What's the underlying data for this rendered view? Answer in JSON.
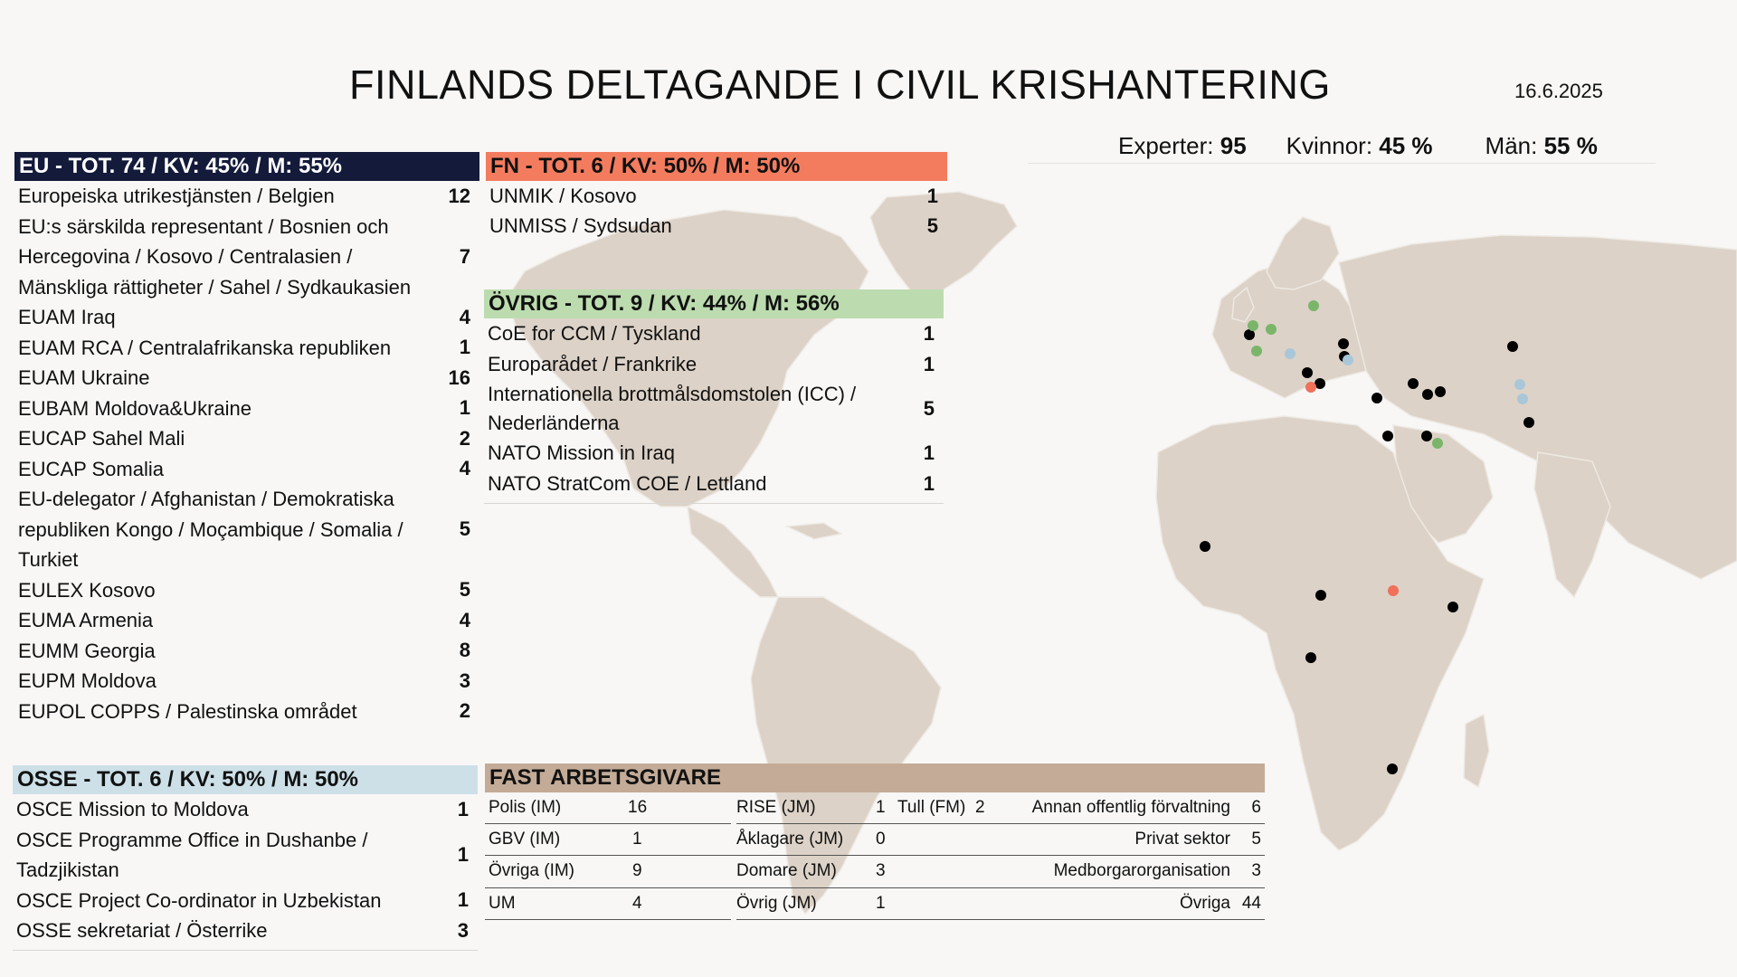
{
  "title": "FINLANDS DELTAGANDE I CIVIL KRISHANTERING",
  "date": "16.6.2025",
  "stats": [
    {
      "label": "Experter:",
      "value": "95"
    },
    {
      "label": "Kvinnor:",
      "value": "45 %"
    },
    {
      "label": "Män:",
      "value": "55 %"
    }
  ],
  "eu": {
    "header": "EU - TOT. 74 / KV: 45% / M: 55%",
    "rows": [
      {
        "name": "Europeiska utrikestjänsten / Belgien",
        "count": "12"
      },
      {
        "name": "EU:s särskilda representant / Bosnien och Hercegovina / Kosovo / Centralasien / Mänskliga rättigheter / Sahel / Sydkaukasien",
        "count": "7"
      },
      {
        "name": "EUAM Iraq",
        "count": "4"
      },
      {
        "name": "EUAM RCA / Centralafrikanska republiken",
        "count": "1"
      },
      {
        "name": "EUAM Ukraine",
        "count": "16"
      },
      {
        "name": "EUBAM Moldova&Ukraine",
        "count": "1"
      },
      {
        "name": "EUCAP Sahel Mali",
        "count": "2"
      },
      {
        "name": "EUCAP Somalia",
        "count": "4"
      },
      {
        "name": "EU-delegator / Afghanistan / Demokratiska republiken Kongo / Moçambique / Somalia / Turkiet",
        "count": "5"
      },
      {
        "name": "EULEX Kosovo",
        "count": "5"
      },
      {
        "name": "EUMA Armenia",
        "count": "4"
      },
      {
        "name": "EUMM Georgia",
        "count": "8"
      },
      {
        "name": "EUPM Moldova",
        "count": "3"
      },
      {
        "name": "EUPOL COPPS / Palestinska området",
        "count": "2"
      }
    ]
  },
  "fn": {
    "header": "FN - TOT. 6 / KV: 50% / M: 50%",
    "rows": [
      {
        "name": "UNMIK / Kosovo",
        "count": "1"
      },
      {
        "name": "UNMISS / Sydsudan",
        "count": "5"
      }
    ]
  },
  "ovrig": {
    "header": "ÖVRIG - TOT. 9 / KV: 44% / M: 56%",
    "rows": [
      {
        "name": "CoE for CCM / Tyskland",
        "count": "1"
      },
      {
        "name": "Europarådet / Frankrike",
        "count": "1"
      },
      {
        "name": "Internationella brottmålsdomstolen (ICC) / Nederländerna",
        "count": "5"
      },
      {
        "name": "NATO Mission in Iraq",
        "count": "1"
      },
      {
        "name": "NATO StratCom COE / Lettland",
        "count": "1"
      }
    ]
  },
  "osse": {
    "header": "OSSE - TOT. 6 / KV: 50% / M: 50%",
    "rows": [
      {
        "name": "OSCE Mission to Moldova",
        "count": "1"
      },
      {
        "name": "OSCE Programme Office in Dushanbe / Tadzjikistan",
        "count": "1"
      },
      {
        "name": "OSCE Project Co-ordinator in Uzbekistan",
        "count": "1"
      },
      {
        "name": "OSSE sekretariat / Österrike",
        "count": "3"
      }
    ]
  },
  "fast": {
    "header": "FAST ARBETSGIVARE",
    "col1": [
      {
        "label": "Polis (IM)",
        "value": "16"
      },
      {
        "label": "GBV (IM)",
        "value": "1"
      },
      {
        "label": "Övriga (IM)",
        "value": "9"
      },
      {
        "label": "UM",
        "value": "4"
      }
    ],
    "col2": [
      {
        "label": "RISE (JM)",
        "value": "1"
      },
      {
        "label": "Åklagare (JM)",
        "value": "0"
      },
      {
        "label": "Domare (JM)",
        "value": "3"
      },
      {
        "label": "Övrig (JM)",
        "value": "1"
      }
    ],
    "col3": [
      {
        "label": "Tull (FM)",
        "value": "2"
      }
    ],
    "col4": [
      {
        "label": "Annan offentlig förvaltning",
        "value": "6"
      },
      {
        "label": "Privat sektor",
        "value": "5"
      },
      {
        "label": "Medborgarorganisation",
        "value": "3"
      },
      {
        "label": "Övriga",
        "value": "44"
      }
    ]
  },
  "colors": {
    "eu": "#131a3a",
    "fn": "#f47c5e",
    "ovrig": "#bcdcaf",
    "osse": "#cde0e8",
    "fast": "#c3ab97",
    "land": "#dcd2c7",
    "marker_eu": "#000000",
    "marker_fn": "#f0705a",
    "marker_ovrig": "#7ab56a",
    "marker_osse": "#a9c7d8"
  }
}
